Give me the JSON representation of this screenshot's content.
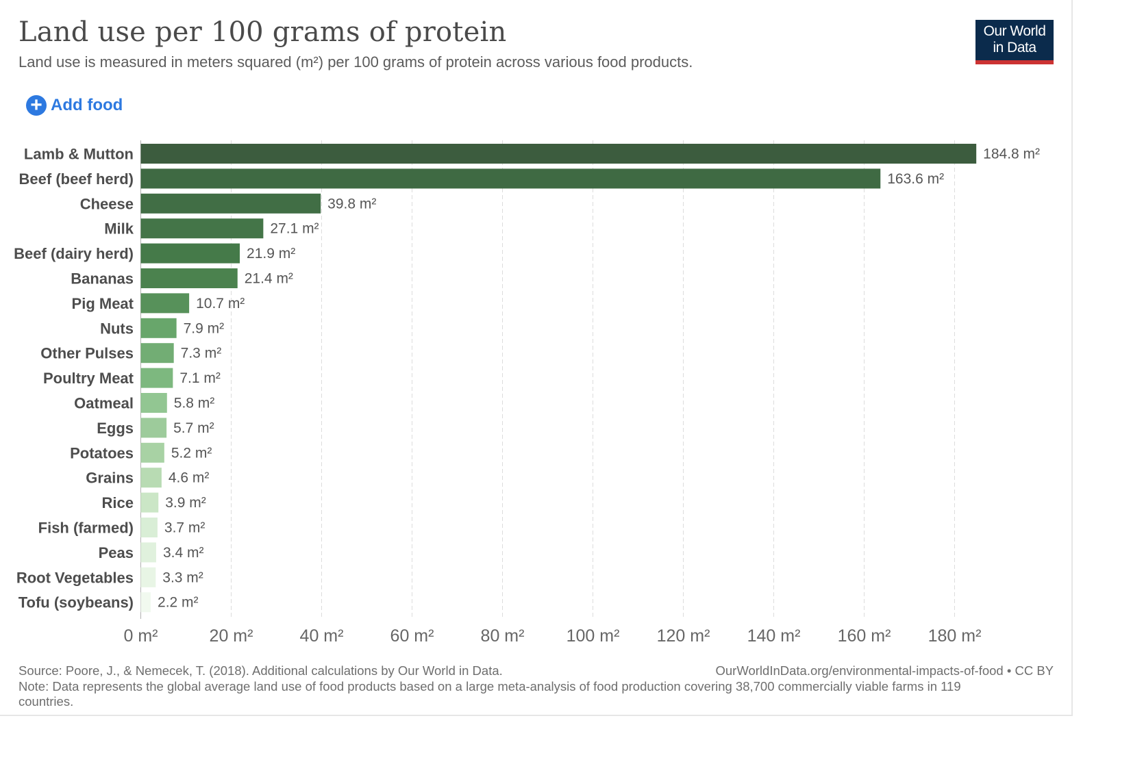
{
  "header": {
    "title": "Land use per 100 grams of protein",
    "subtitle": "Land use is measured in meters squared (m²) per 100 grams of protein across various food products."
  },
  "logo": {
    "line1": "Our World",
    "line2": "in Data",
    "bg_color": "#0b2b4c",
    "accent_color": "#cc3333"
  },
  "controls": {
    "add_food_label": "Add food",
    "add_icon": "plus-circle-icon",
    "accent_color": "#2d79e0"
  },
  "footer": {
    "source": "Source: Poore, J., & Nemecek, T. (2018). Additional calculations by Our World in Data.",
    "url": "OurWorldInData.org/environmental-impacts-of-food • CC BY",
    "note": "Note: Data represents the global average land use of food products based on a large meta-analysis of food production covering 38,700 commercially viable farms in 119 countries."
  },
  "chart_data": {
    "type": "bar",
    "orientation": "horizontal",
    "title": "Land use per 100 grams of protein",
    "xlabel": "",
    "ylabel": "",
    "unit": "m²",
    "xlim": [
      0,
      184.8
    ],
    "xticks": [
      0,
      20,
      40,
      60,
      80,
      100,
      120,
      140,
      160,
      180
    ],
    "xtick_labels": [
      "0 m²",
      "20 m²",
      "40 m²",
      "60 m²",
      "80 m²",
      "100 m²",
      "120 m²",
      "140 m²",
      "160 m²",
      "180 m²"
    ],
    "grid": "vertical dashed",
    "categories": [
      "Lamb & Mutton",
      "Beef (beef herd)",
      "Cheese",
      "Milk",
      "Beef (dairy herd)",
      "Bananas",
      "Pig Meat",
      "Nuts",
      "Other Pulses",
      "Poultry Meat",
      "Oatmeal",
      "Eggs",
      "Potatoes",
      "Grains",
      "Rice",
      "Fish (farmed)",
      "Peas",
      "Root Vegetables",
      "Tofu (soybeans)"
    ],
    "values": [
      184.8,
      163.6,
      39.8,
      27.1,
      21.9,
      21.4,
      10.7,
      7.9,
      7.3,
      7.1,
      5.8,
      5.7,
      5.2,
      4.6,
      3.9,
      3.7,
      3.4,
      3.3,
      2.2
    ],
    "value_labels": [
      "184.8 m²",
      "163.6 m²",
      "39.8 m²",
      "27.1 m²",
      "21.9 m²",
      "21.4 m²",
      "10.7 m²",
      "7.9 m²",
      "7.3 m²",
      "7.1 m²",
      "5.8 m²",
      "5.7 m²",
      "5.2 m²",
      "4.6 m²",
      "3.9 m²",
      "3.7 m²",
      "3.4 m²",
      "3.3 m²",
      "2.2 m²"
    ],
    "colors": [
      "#3c5c3e",
      "#3f6a43",
      "#416e45",
      "#447548",
      "#457a49",
      "#4b824e",
      "#57915a",
      "#68a66b",
      "#72ad74",
      "#7db87f",
      "#92c692",
      "#9dcb9b",
      "#a8d2a4",
      "#b8dbb3",
      "#cbe6c6",
      "#d9eed6",
      "#e0f1dd",
      "#e8f5e5",
      "#f1f9ef"
    ]
  }
}
